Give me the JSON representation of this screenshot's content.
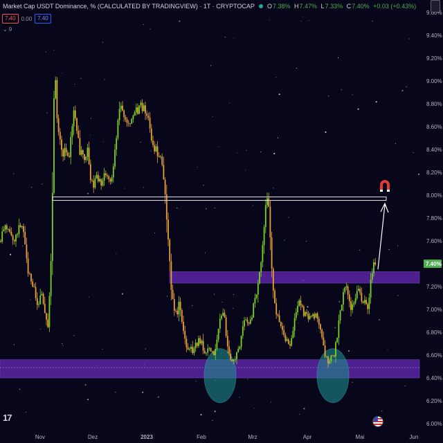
{
  "legend": {
    "title": "Market Cap USDT Dominance, % (CALCULATED BY TRADINGVIEW) · 1T · CRYPTOCAP",
    "o_label": "O",
    "o": "7.38%",
    "h_label": "H",
    "h": "7.47%",
    "l_label": "L",
    "l": "7.33%",
    "c_label": "C",
    "c": "7.40%",
    "change": "+0.03 (+0.43%)"
  },
  "order_pills": {
    "sell": "7.40",
    "spread": "0.00",
    "buy": "7.40"
  },
  "indicators_toggle": "9",
  "axis_unit": "%",
  "logo": "17",
  "colors": {
    "background": "#08061a",
    "up": "#7ed321",
    "down": "#e8a13a",
    "zone": "#6a2bbd",
    "zone_border": "#8e5be8",
    "circle": "#1e8c8c",
    "resistance_line": "#d8d8d8",
    "price_tag": "#4caf50",
    "magnet": "#e53935"
  },
  "chart_data": {
    "type": "candlestick",
    "unit": "%",
    "y_ticks": [
      "9.60%",
      "9.40%",
      "9.20%",
      "9.00%",
      "8.80%",
      "8.60%",
      "8.40%",
      "8.20%",
      "8.00%",
      "7.80%",
      "7.60%",
      "7.40%",
      "7.20%",
      "7.00%",
      "6.80%",
      "6.60%",
      "6.40%",
      "6.20%",
      "6.00%"
    ],
    "ylim": [
      6.0,
      9.6
    ],
    "x_labels": [
      "Nov",
      "Dez",
      "2023",
      "Feb",
      "Mrz",
      "Apr",
      "Mai",
      "Jun"
    ],
    "last_price": "7.40%",
    "resistance_level": 7.97,
    "zones": [
      {
        "low": 7.23,
        "high": 7.33
      },
      {
        "low": 6.4,
        "high": 6.56
      }
    ],
    "price_path": [
      [
        0,
        7.6
      ],
      [
        4,
        7.68
      ],
      [
        9,
        7.73
      ],
      [
        13,
        7.66
      ],
      [
        17,
        7.63
      ],
      [
        21,
        7.58
      ],
      [
        25,
        7.69
      ],
      [
        29,
        7.75
      ],
      [
        33,
        7.71
      ],
      [
        37,
        7.52
      ],
      [
        41,
        7.3
      ],
      [
        45,
        7.25
      ],
      [
        49,
        7.18
      ],
      [
        53,
        7.05
      ],
      [
        57,
        7.08
      ],
      [
        61,
        7.14
      ],
      [
        65,
        6.95
      ],
      [
        69,
        6.84
      ],
      [
        73,
        7.3
      ],
      [
        76,
        8.05
      ],
      [
        79,
        9.2
      ],
      [
        83,
        8.55
      ],
      [
        87,
        8.48
      ],
      [
        91,
        8.35
      ],
      [
        95,
        8.41
      ],
      [
        99,
        8.29
      ],
      [
        103,
        8.55
      ],
      [
        107,
        8.75
      ],
      [
        111,
        8.59
      ],
      [
        115,
        8.38
      ],
      [
        119,
        8.36
      ],
      [
        123,
        8.26
      ],
      [
        127,
        8.42
      ],
      [
        131,
        8.12
      ],
      [
        135,
        8.07
      ],
      [
        139,
        8.15
      ],
      [
        143,
        8.11
      ],
      [
        147,
        8.12
      ],
      [
        151,
        8.21
      ],
      [
        155,
        8.16
      ],
      [
        159,
        8.11
      ],
      [
        163,
        8.19
      ],
      [
        167,
        8.43
      ],
      [
        171,
        8.69
      ],
      [
        175,
        8.8
      ],
      [
        179,
        8.65
      ],
      [
        183,
        8.62
      ],
      [
        187,
        8.61
      ],
      [
        191,
        8.66
      ],
      [
        195,
        8.75
      ],
      [
        199,
        8.72
      ],
      [
        203,
        8.78
      ],
      [
        207,
        8.76
      ],
      [
        211,
        8.72
      ],
      [
        215,
        8.64
      ],
      [
        219,
        8.5
      ],
      [
        223,
        8.42
      ],
      [
        227,
        8.38
      ],
      [
        231,
        8.35
      ],
      [
        235,
        8.21
      ],
      [
        239,
        7.95
      ],
      [
        243,
        7.6
      ],
      [
        247,
        7.22
      ],
      [
        251,
        7.04
      ],
      [
        255,
        6.95
      ],
      [
        259,
        7.05
      ],
      [
        263,
        6.85
      ],
      [
        267,
        6.73
      ],
      [
        271,
        6.66
      ],
      [
        275,
        6.7
      ],
      [
        279,
        6.62
      ],
      [
        283,
        6.68
      ],
      [
        287,
        6.72
      ],
      [
        291,
        6.75
      ],
      [
        295,
        6.62
      ],
      [
        299,
        6.64
      ],
      [
        303,
        6.67
      ],
      [
        307,
        6.62
      ],
      [
        311,
        6.64
      ],
      [
        315,
        6.79
      ],
      [
        319,
        6.93
      ],
      [
        323,
        7.02
      ],
      [
        327,
        6.74
      ],
      [
        331,
        6.63
      ],
      [
        335,
        6.54
      ],
      [
        339,
        6.58
      ],
      [
        343,
        6.66
      ],
      [
        347,
        6.71
      ],
      [
        351,
        6.84
      ],
      [
        355,
        6.95
      ],
      [
        359,
        6.86
      ],
      [
        363,
        6.9
      ],
      [
        367,
        7.1
      ],
      [
        371,
        7.17
      ],
      [
        375,
        7.33
      ],
      [
        379,
        7.51
      ],
      [
        383,
        7.88
      ],
      [
        387,
        8.02
      ],
      [
        391,
        7.55
      ],
      [
        395,
        7.13
      ],
      [
        399,
        6.99
      ],
      [
        403,
        6.93
      ],
      [
        407,
        6.87
      ],
      [
        411,
        6.77
      ],
      [
        415,
        6.7
      ],
      [
        419,
        6.67
      ],
      [
        423,
        6.83
      ],
      [
        427,
        6.95
      ],
      [
        431,
        7.08
      ],
      [
        435,
        7.05
      ],
      [
        439,
        6.93
      ],
      [
        443,
        6.96
      ],
      [
        447,
        6.93
      ],
      [
        451,
        6.97
      ],
      [
        455,
        6.93
      ],
      [
        459,
        6.95
      ],
      [
        463,
        6.8
      ],
      [
        467,
        6.69
      ],
      [
        471,
        6.57
      ],
      [
        475,
        6.53
      ],
      [
        479,
        6.6
      ],
      [
        483,
        6.62
      ],
      [
        487,
        6.74
      ],
      [
        491,
        6.97
      ],
      [
        495,
        7.11
      ],
      [
        499,
        7.23
      ],
      [
        503,
        7.12
      ],
      [
        507,
        6.99
      ],
      [
        511,
        7.04
      ],
      [
        515,
        7.12
      ],
      [
        519,
        7.21
      ],
      [
        523,
        7.04
      ],
      [
        527,
        7.09
      ],
      [
        531,
        7.02
      ],
      [
        535,
        7.2
      ],
      [
        539,
        7.38
      ],
      [
        543,
        7.4
      ]
    ]
  }
}
